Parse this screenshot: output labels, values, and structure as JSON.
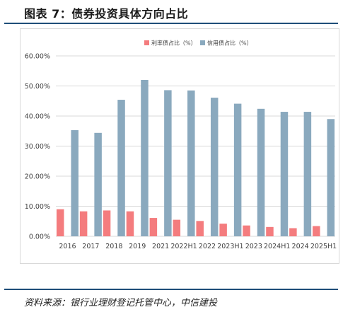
{
  "header": {
    "title": "图表 7：债券投资具体方向占比"
  },
  "footer": {
    "source": "资料来源：银行业理财登记托管中心，中信建投"
  },
  "colors": {
    "rate_bond": "#f47c7e",
    "credit_bond": "#8aa9be",
    "rule": "#1f4e79",
    "grid": "#d9d9d9"
  },
  "chart_data": {
    "type": "bar",
    "categories": [
      "2016",
      "2017",
      "2018",
      "2019",
      "2021",
      "2022H1",
      "2022",
      "2023H1",
      "2023",
      "2024H1",
      "2024",
      "2025H1"
    ],
    "series": [
      {
        "name": "利率债占比（%）",
        "values": [
          9.0,
          8.3,
          8.6,
          8.3,
          6.1,
          5.5,
          5.1,
          4.2,
          3.6,
          3.1,
          2.7,
          3.4
        ]
      },
      {
        "name": "信用债占比（%）",
        "values": [
          35.3,
          34.4,
          45.4,
          52.0,
          48.6,
          48.5,
          46.1,
          44.1,
          42.4,
          41.4,
          41.4,
          39.0
        ]
      }
    ],
    "ylim": [
      0,
      60
    ],
    "yticks": [
      "0.00%",
      "10.00%",
      "20.00%",
      "30.00%",
      "40.00%",
      "50.00%",
      "60.00%"
    ],
    "grid": true,
    "legend_position": "top-center"
  }
}
